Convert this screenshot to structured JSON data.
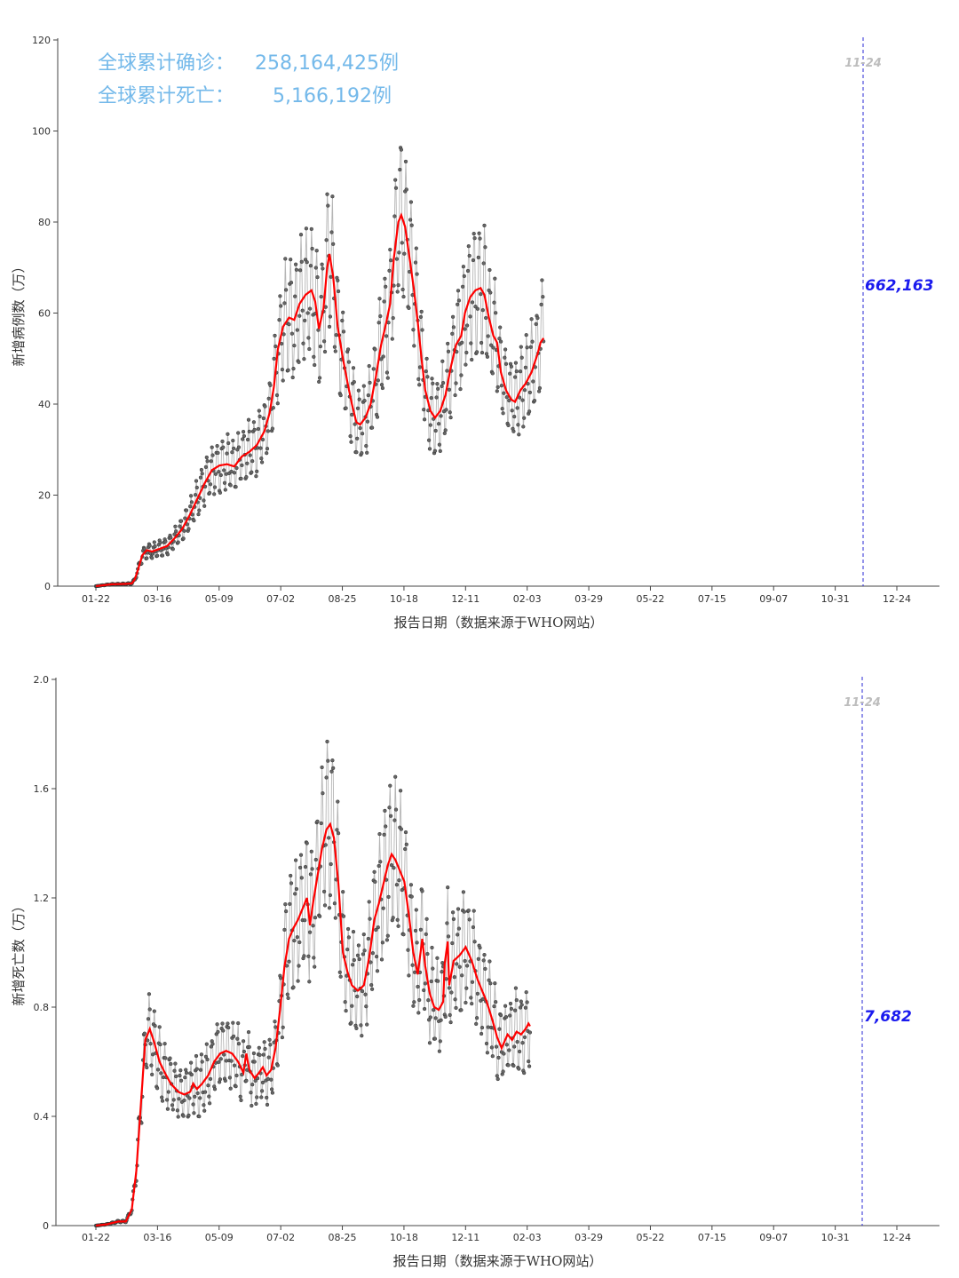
{
  "summary": {
    "cases_label": "全球累计确诊：",
    "cases_value": "258,164,425例",
    "deaths_label": "全球累计死亡：",
    "deaths_value": "5,166,192例"
  },
  "colors": {
    "daily_points": "#666666",
    "daily_line": "#b5b5b5",
    "moving_average": "#ff0000",
    "marker_line": "#2929d6",
    "latest_label": "#1a1aee",
    "summary_text": "#74b9ea"
  },
  "chart_data": [
    {
      "type": "line",
      "ylabel": "新增病例数（万）",
      "xlabel": "报告日期（数据来源于WHO网站）",
      "ylim": [
        0,
        120
      ],
      "yticks": [
        "0",
        "20",
        "40",
        "60",
        "80",
        "100",
        "120"
      ],
      "xticks": [
        "01-22",
        "03-16",
        "05-09",
        "07-02",
        "08-25",
        "10-18",
        "12-11",
        "02-03",
        "03-29",
        "05-22",
        "07-15",
        "09-07",
        "10-31",
        "12-24"
      ],
      "marker_label": "11-24",
      "latest_value_label": "662,163",
      "x_unit": "days since 2020-01-22",
      "x_max": 1070,
      "marker_day": 672,
      "series": [
        {
          "name": "",
          "role": "moving_average",
          "points": [
            [
              0,
              0
            ],
            [
              20,
              0.4
            ],
            [
              40,
              0.5
            ],
            [
              48,
              0.6
            ],
            [
              52,
              1.5
            ],
            [
              56,
              3.5
            ],
            [
              62,
              6.8
            ],
            [
              68,
              7.9
            ],
            [
              75,
              7.6
            ],
            [
              85,
              8.2
            ],
            [
              95,
              8.8
            ],
            [
              105,
              10.5
            ],
            [
              115,
              12.5
            ],
            [
              125,
              15.5
            ],
            [
              135,
              19
            ],
            [
              145,
              22.5
            ],
            [
              155,
              25.5
            ],
            [
              165,
              26.5
            ],
            [
              175,
              26.8
            ],
            [
              185,
              26.3
            ],
            [
              195,
              28.5
            ],
            [
              205,
              29.5
            ],
            [
              215,
              31
            ],
            [
              225,
              34
            ],
            [
              232,
              38
            ],
            [
              238,
              44
            ],
            [
              243,
              52
            ],
            [
              250,
              57
            ],
            [
              258,
              59
            ],
            [
              265,
              58.5
            ],
            [
              272,
              62
            ],
            [
              280,
              64
            ],
            [
              288,
              65
            ],
            [
              293,
              62.5
            ],
            [
              298,
              56.5
            ],
            [
              304,
              61
            ],
            [
              309,
              70
            ],
            [
              312,
              73
            ],
            [
              317,
              68
            ],
            [
              323,
              57
            ],
            [
              330,
              50
            ],
            [
              337,
              44
            ],
            [
              342,
              40
            ],
            [
              348,
              36
            ],
            [
              353,
              35.5
            ],
            [
              360,
              37
            ],
            [
              367,
              40
            ],
            [
              374,
              46
            ],
            [
              381,
              53
            ],
            [
              388,
              58
            ],
            [
              393,
              62
            ],
            [
              398,
              72
            ],
            [
              404,
              80
            ],
            [
              408,
              81.5
            ],
            [
              413,
              79
            ],
            [
              420,
              71
            ],
            [
              425,
              65
            ],
            [
              430,
              58
            ],
            [
              435,
              50
            ],
            [
              440,
              43
            ],
            [
              447,
              38.5
            ],
            [
              453,
              37
            ],
            [
              460,
              38.5
            ],
            [
              467,
              42
            ],
            [
              474,
              48
            ],
            [
              481,
              53
            ],
            [
              488,
              55
            ],
            [
              493,
              60
            ],
            [
              500,
              63.5
            ],
            [
              507,
              65
            ],
            [
              514,
              65.5
            ],
            [
              519,
              64
            ],
            [
              525,
              59
            ],
            [
              531,
              55
            ],
            [
              536,
              53.5
            ],
            [
              541,
              47
            ],
            [
              548,
              43
            ],
            [
              555,
              41
            ],
            [
              560,
              40.5
            ],
            [
              567,
              43
            ],
            [
              574,
              44.5
            ],
            [
              582,
              47
            ],
            [
              590,
              51
            ],
            [
              594,
              53.5
            ],
            [
              598,
              54.5
            ]
          ]
        },
        {
          "name": "",
          "role": "daily_reported",
          "weekly_amplitude": 0.15
        }
      ]
    },
    {
      "type": "line",
      "ylabel": "新增死亡数（万）",
      "xlabel": "报告日期（数据来源于WHO网站）",
      "ylim": [
        0,
        2.0
      ],
      "yticks": [
        "0",
        "0.4",
        "0.8",
        "1.2",
        "1.6",
        "2.0"
      ],
      "xticks": [
        "01-22",
        "03-16",
        "05-09",
        "07-02",
        "08-25",
        "10-18",
        "12-11",
        "02-03",
        "03-29",
        "05-22",
        "07-15",
        "09-07",
        "10-31",
        "12-24"
      ],
      "marker_label": "11-24",
      "latest_value_label": "7,682",
      "x_unit": "days since 2020-01-22",
      "x_max": 1070,
      "marker_day": 672,
      "series": [
        {
          "name": "",
          "role": "moving_average",
          "points": [
            [
              0,
              0
            ],
            [
              15,
              0.005
            ],
            [
              30,
              0.015
            ],
            [
              40,
              0.015
            ],
            [
              48,
              0.06
            ],
            [
              54,
              0.2
            ],
            [
              58,
              0.36
            ],
            [
              62,
              0.52
            ],
            [
              66,
              0.68
            ],
            [
              72,
              0.72
            ],
            [
              78,
              0.67
            ],
            [
              85,
              0.6
            ],
            [
              92,
              0.56
            ],
            [
              100,
              0.52
            ],
            [
              110,
              0.49
            ],
            [
              118,
              0.48
            ],
            [
              126,
              0.49
            ],
            [
              130,
              0.52
            ],
            [
              135,
              0.5
            ],
            [
              142,
              0.52
            ],
            [
              150,
              0.55
            ],
            [
              158,
              0.6
            ],
            [
              166,
              0.63
            ],
            [
              174,
              0.64
            ],
            [
              182,
              0.63
            ],
            [
              190,
              0.6
            ],
            [
              197,
              0.56
            ],
            [
              201,
              0.63
            ],
            [
              205,
              0.57
            ],
            [
              212,
              0.54
            ],
            [
              218,
              0.56
            ],
            [
              223,
              0.58
            ],
            [
              228,
              0.55
            ],
            [
              234,
              0.57
            ],
            [
              240,
              0.65
            ],
            [
              246,
              0.79
            ],
            [
              252,
              0.95
            ],
            [
              258,
              1.05
            ],
            [
              264,
              1.09
            ],
            [
              270,
              1.12
            ],
            [
              276,
              1.16
            ],
            [
              282,
              1.2
            ],
            [
              286,
              1.1
            ],
            [
              290,
              1.18
            ],
            [
              296,
              1.28
            ],
            [
              302,
              1.38
            ],
            [
              308,
              1.45
            ],
            [
              313,
              1.47
            ],
            [
              318,
              1.42
            ],
            [
              324,
              1.25
            ],
            [
              330,
              1.0
            ],
            [
              336,
              0.93
            ],
            [
              342,
              0.88
            ],
            [
              350,
              0.86
            ],
            [
              358,
              0.88
            ],
            [
              365,
              0.98
            ],
            [
              372,
              1.12
            ],
            [
              378,
              1.18
            ],
            [
              384,
              1.25
            ],
            [
              390,
              1.32
            ],
            [
              395,
              1.36
            ],
            [
              400,
              1.34
            ],
            [
              406,
              1.3
            ],
            [
              412,
              1.26
            ],
            [
              418,
              1.14
            ],
            [
              424,
              1.0
            ],
            [
              430,
              0.92
            ],
            [
              436,
              1.05
            ],
            [
              440,
              0.95
            ],
            [
              446,
              0.85
            ],
            [
              452,
              0.8
            ],
            [
              458,
              0.79
            ],
            [
              464,
              0.82
            ],
            [
              466,
              0.96
            ],
            [
              470,
              1.04
            ],
            [
              472,
              0.88
            ],
            [
              478,
              0.97
            ],
            [
              486,
              0.99
            ],
            [
              494,
              1.02
            ],
            [
              502,
              0.97
            ],
            [
              510,
              0.9
            ],
            [
              516,
              0.86
            ],
            [
              522,
              0.82
            ],
            [
              530,
              0.75
            ],
            [
              536,
              0.69
            ],
            [
              542,
              0.65
            ],
            [
              550,
              0.7
            ],
            [
              556,
              0.68
            ],
            [
              562,
              0.71
            ],
            [
              568,
              0.7
            ],
            [
              574,
              0.72
            ],
            [
              578,
              0.74
            ],
            [
              580,
              0.73
            ]
          ]
        },
        {
          "name": "",
          "role": "daily_reported",
          "weekly_amplitude": 0.14
        }
      ]
    }
  ]
}
